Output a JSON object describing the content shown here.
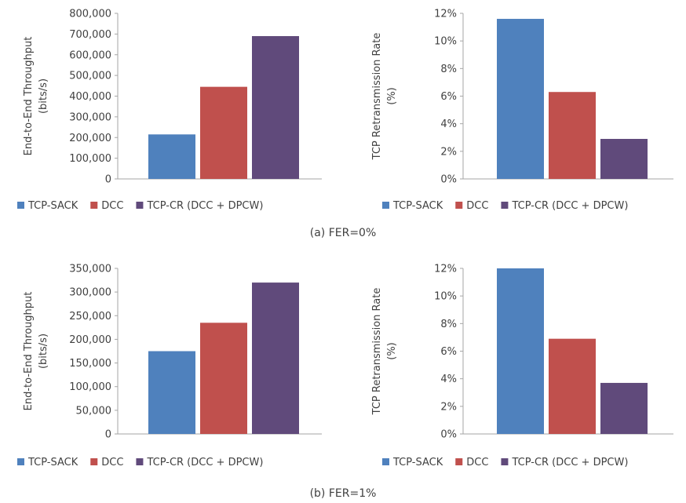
{
  "colors": {
    "TCP-SACK": "#4f81bd",
    "DCC": "#c0504d",
    "TCP-CR (DCC + DPCW)": "#604a7b",
    "axis": "#a6a6a6",
    "text": "#404040"
  },
  "captions": [
    "(a) FER=0%",
    "(b) FER=1%"
  ],
  "legend": [
    "TCP-SACK",
    "DCC",
    "TCP-CR (DCC + DPCW)"
  ],
  "chart_data": [
    {
      "type": "bar",
      "panel": "a-left",
      "categories": [
        "TCP-SACK",
        "DCC",
        "TCP-CR (DCC + DPCW)"
      ],
      "values": [
        215000,
        445000,
        690000
      ],
      "ylabel": [
        "End-to-End Throughput",
        "(bits/s)"
      ],
      "ylim": [
        0,
        800000
      ],
      "ticks": [
        "0",
        "100,000",
        "200,000",
        "300,000",
        "400,000",
        "500,000",
        "600,000",
        "700,000",
        "800,000"
      ],
      "legend_position": "bottom",
      "grid": false
    },
    {
      "type": "bar",
      "panel": "a-right",
      "categories": [
        "TCP-SACK",
        "DCC",
        "TCP-CR (DCC + DPCW)"
      ],
      "values": [
        11.6,
        6.3,
        2.9
      ],
      "ylabel": [
        "TCP Retransmission Rate",
        "(%)"
      ],
      "ylim": [
        0,
        12
      ],
      "ticks": [
        "0%",
        "2%",
        "4%",
        "6%",
        "8%",
        "10%",
        "12%"
      ],
      "legend_position": "bottom",
      "grid": false
    },
    {
      "type": "bar",
      "panel": "b-left",
      "categories": [
        "TCP-SACK",
        "DCC",
        "TCP-CR (DCC + DPCW)"
      ],
      "values": [
        175000,
        235000,
        320000
      ],
      "ylabel": [
        "End-to-End Throughput",
        "(bits/s)"
      ],
      "ylim": [
        0,
        350000
      ],
      "ticks": [
        "0",
        "50,000",
        "100,000",
        "150,000",
        "200,000",
        "250,000",
        "300,000",
        "350,000"
      ],
      "legend_position": "bottom",
      "grid": false
    },
    {
      "type": "bar",
      "panel": "b-right",
      "categories": [
        "TCP-SACK",
        "DCC",
        "TCP-CR (DCC + DPCW)"
      ],
      "values": [
        12.0,
        6.9,
        3.7
      ],
      "ylabel": [
        "TCP Retransmission Rate",
        "(%)"
      ],
      "ylim": [
        0,
        12
      ],
      "ticks": [
        "0%",
        "2%",
        "4%",
        "6%",
        "8%",
        "10%",
        "12%"
      ],
      "legend_position": "bottom",
      "grid": false
    }
  ]
}
